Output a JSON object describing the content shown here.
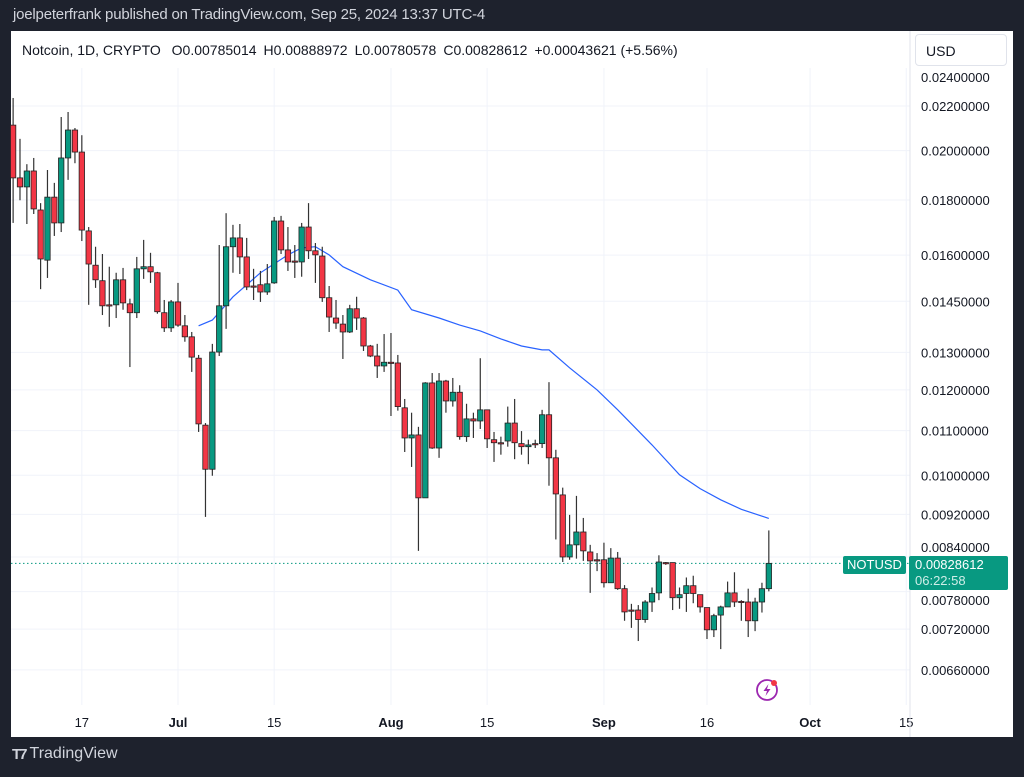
{
  "publisher_line": "joelpeterfrank published on TradingView.com, Sep 25, 2024 13:37 UTC-4",
  "legend": {
    "symbol": "Notcoin, 1D, CRYPTO",
    "open": "O0.00785014",
    "high": "H0.00888972",
    "low": "L0.00780578",
    "close": "C0.00828612",
    "change": "+0.00043621 (+5.56%)"
  },
  "currency_button": "USD",
  "last_price": {
    "symbol": "NOTUSD",
    "price": "0.00828612",
    "countdown": "06:22:58"
  },
  "brand": "TradingView",
  "colors": {
    "up": "#089981",
    "down": "#f23645",
    "ma": "#2962ff",
    "last_line": "#089981",
    "frame": "#1e222d"
  },
  "icons": {
    "logo": "tradingview-logo",
    "bolt": "lightning-bolt-icon"
  },
  "chart_data": {
    "type": "candlestick",
    "interval": "1D",
    "y_scale": "log",
    "ylim": [
      0.0062,
      0.0245
    ],
    "grid": true,
    "x_ticks": [
      {
        "label": "17",
        "date": "2024-06-17",
        "bold": false
      },
      {
        "label": "Jul",
        "date": "2024-07-01",
        "bold": true
      },
      {
        "label": "15",
        "date": "2024-07-15",
        "bold": false
      },
      {
        "label": "Aug",
        "date": "2024-08-01",
        "bold": true
      },
      {
        "label": "15",
        "date": "2024-08-15",
        "bold": false
      },
      {
        "label": "Sep",
        "date": "2024-09-01",
        "bold": true
      },
      {
        "label": "16",
        "date": "2024-09-16",
        "bold": false
      },
      {
        "label": "Oct",
        "date": "2024-10-01",
        "bold": true
      },
      {
        "label": "15",
        "date": "2024-10-15",
        "bold": false
      }
    ],
    "y_ticks": [
      {
        "label": "0.02400000",
        "value": 0.024
      },
      {
        "label": "0.02200000",
        "value": 0.022
      },
      {
        "label": "0.02000000",
        "value": 0.02
      },
      {
        "label": "0.01800000",
        "value": 0.018
      },
      {
        "label": "0.01600000",
        "value": 0.016
      },
      {
        "label": "0.01450000",
        "value": 0.0145
      },
      {
        "label": "0.01300000",
        "value": 0.013
      },
      {
        "label": "0.01200000",
        "value": 0.012
      },
      {
        "label": "0.01100000",
        "value": 0.011
      },
      {
        "label": "0.01000000",
        "value": 0.01
      },
      {
        "label": "0.00920000",
        "value": 0.0092
      },
      {
        "label": "0.00840000",
        "value": 0.0084
      },
      {
        "label": "0.00780000",
        "value": 0.0078
      },
      {
        "label": "0.00720000",
        "value": 0.0072
      },
      {
        "label": "0.00660000",
        "value": 0.0066
      }
    ],
    "candles_columns": [
      "date",
      "open",
      "high",
      "low",
      "close"
    ],
    "candles": [
      [
        "2024-06-07",
        0.02112,
        0.02238,
        0.01714,
        0.01887
      ],
      [
        "2024-06-08",
        0.01887,
        0.02051,
        0.01799,
        0.01851
      ],
      [
        "2024-06-09",
        0.01851,
        0.01943,
        0.0171,
        0.01915
      ],
      [
        "2024-06-10",
        0.01915,
        0.01969,
        0.01747,
        0.01766
      ],
      [
        "2024-06-11",
        0.01762,
        0.01788,
        0.01488,
        0.01587
      ],
      [
        "2024-06-12",
        0.01583,
        0.01919,
        0.01524,
        0.01811
      ],
      [
        "2024-06-13",
        0.01811,
        0.01867,
        0.01667,
        0.01714
      ],
      [
        "2024-06-14",
        0.01714,
        0.02149,
        0.01681,
        0.01969
      ],
      [
        "2024-06-15",
        0.01969,
        0.02172,
        0.01879,
        0.0209
      ],
      [
        "2024-06-16",
        0.0209,
        0.02099,
        0.01947,
        0.01994
      ],
      [
        "2024-06-17",
        0.01994,
        0.02067,
        0.01649,
        0.01688
      ],
      [
        "2024-06-18",
        0.01685,
        0.01699,
        0.01439,
        0.0157
      ],
      [
        "2024-06-19",
        0.01566,
        0.01629,
        0.01492,
        0.01518
      ],
      [
        "2024-06-20",
        0.01515,
        0.01604,
        0.01408,
        0.01436
      ],
      [
        "2024-06-21",
        0.01439,
        0.01561,
        0.01373,
        0.01436
      ],
      [
        "2024-06-22",
        0.01439,
        0.01541,
        0.01399,
        0.01518
      ],
      [
        "2024-06-23",
        0.01518,
        0.01557,
        0.01424,
        0.01445
      ],
      [
        "2024-06-24",
        0.01442,
        0.01458,
        0.0126,
        0.01415
      ],
      [
        "2024-06-25",
        0.01415,
        0.01594,
        0.01399,
        0.01554
      ],
      [
        "2024-06-26",
        0.01554,
        0.01653,
        0.01521,
        0.01561
      ],
      [
        "2024-06-27",
        0.01561,
        0.01608,
        0.01508,
        0.01544
      ],
      [
        "2024-06-28",
        0.01541,
        0.01544,
        0.01412,
        0.01418
      ],
      [
        "2024-06-29",
        0.01415,
        0.01454,
        0.01358,
        0.0137
      ],
      [
        "2024-06-30",
        0.0137,
        0.01454,
        0.01358,
        0.01448
      ],
      [
        "2024-07-01",
        0.01448,
        0.01508,
        0.01373,
        0.01378
      ],
      [
        "2024-07-02",
        0.01376,
        0.01408,
        0.0133,
        0.01344
      ],
      [
        "2024-07-03",
        0.01344,
        0.01358,
        0.01247,
        0.01287
      ],
      [
        "2024-07-04",
        0.01284,
        0.01293,
        0.01097,
        0.01116
      ],
      [
        "2024-07-05",
        0.01113,
        0.01118,
        0.00915,
        0.01013
      ],
      [
        "2024-07-06",
        0.01013,
        0.01324,
        0.00999,
        0.01301
      ],
      [
        "2024-07-07",
        0.01301,
        0.01635,
        0.0129,
        0.01436
      ],
      [
        "2024-07-08",
        0.01436,
        0.0175,
        0.01367,
        0.01629
      ],
      [
        "2024-07-09",
        0.01629,
        0.01707,
        0.01541,
        0.0166
      ],
      [
        "2024-07-10",
        0.0166,
        0.0171,
        0.01537,
        0.01594
      ],
      [
        "2024-07-11",
        0.01594,
        0.0166,
        0.01485,
        0.01495
      ],
      [
        "2024-07-12",
        0.01498,
        0.01554,
        0.01454,
        0.01496
      ],
      [
        "2024-07-13",
        0.01502,
        0.01547,
        0.01448,
        0.01479
      ],
      [
        "2024-07-14",
        0.01479,
        0.0157,
        0.0147,
        0.01505
      ],
      [
        "2024-07-15",
        0.01508,
        0.01736,
        0.01505,
        0.01721
      ],
      [
        "2024-07-16",
        0.01721,
        0.0174,
        0.01604,
        0.01618
      ],
      [
        "2024-07-17",
        0.01618,
        0.01699,
        0.01547,
        0.01577
      ],
      [
        "2024-07-18",
        0.0158,
        0.01635,
        0.01524,
        0.01577
      ],
      [
        "2024-07-19",
        0.01577,
        0.01714,
        0.01528,
        0.01699
      ],
      [
        "2024-07-20",
        0.01699,
        0.01788,
        0.01587,
        0.01615
      ],
      [
        "2024-07-21",
        0.01615,
        0.01642,
        0.01508,
        0.01601
      ],
      [
        "2024-07-22",
        0.01597,
        0.01629,
        0.01448,
        0.01461
      ],
      [
        "2024-07-23",
        0.01461,
        0.01498,
        0.01358,
        0.01402
      ],
      [
        "2024-07-24",
        0.01399,
        0.01454,
        0.01367,
        0.01384
      ],
      [
        "2024-07-25",
        0.01381,
        0.01408,
        0.01282,
        0.01358
      ],
      [
        "2024-07-26",
        0.01358,
        0.01439,
        0.01355,
        0.01427
      ],
      [
        "2024-07-27",
        0.01427,
        0.01464,
        0.01364,
        0.01399
      ],
      [
        "2024-07-28",
        0.01399,
        0.01402,
        0.01304,
        0.01318
      ],
      [
        "2024-07-29",
        0.01318,
        0.01321,
        0.01287,
        0.0129
      ],
      [
        "2024-07-30",
        0.0129,
        0.01324,
        0.01231,
        0.01263
      ],
      [
        "2024-07-31",
        0.01263,
        0.01352,
        0.01247,
        0.01273
      ],
      [
        "2024-08-01",
        0.01273,
        0.01355,
        0.01135,
        0.01271
      ],
      [
        "2024-08-02",
        0.01271,
        0.01293,
        0.01148,
        0.01158
      ],
      [
        "2024-08-03",
        0.01155,
        0.01177,
        0.01051,
        0.01083
      ],
      [
        "2024-08-04",
        0.01083,
        0.01143,
        0.01018,
        0.0109
      ],
      [
        "2024-08-05",
        0.0109,
        0.01109,
        0.00851,
        0.00953
      ],
      [
        "2024-08-06",
        0.00953,
        0.0122,
        0.00953,
        0.01218
      ],
      [
        "2024-08-07",
        0.01218,
        0.01244,
        0.01058,
        0.0106
      ],
      [
        "2024-08-08",
        0.0106,
        0.01244,
        0.01038,
        0.01223
      ],
      [
        "2024-08-09",
        0.01223,
        0.01226,
        0.01143,
        0.01172
      ],
      [
        "2024-08-10",
        0.01172,
        0.01231,
        0.01158,
        0.01194
      ],
      [
        "2024-08-11",
        0.01194,
        0.01212,
        0.01079,
        0.01086
      ],
      [
        "2024-08-12",
        0.01086,
        0.01165,
        0.01074,
        0.01128
      ],
      [
        "2024-08-13",
        0.01128,
        0.01143,
        0.01083,
        0.01123
      ],
      [
        "2024-08-14",
        0.01123,
        0.01284,
        0.01104,
        0.0115
      ],
      [
        "2024-08-15",
        0.0115,
        0.0115,
        0.0106,
        0.01081
      ],
      [
        "2024-08-16",
        0.01079,
        0.01097,
        0.01029,
        0.01072
      ],
      [
        "2024-08-17",
        0.01072,
        0.01086,
        0.01045,
        0.0107
      ],
      [
        "2024-08-18",
        0.01076,
        0.01158,
        0.01063,
        0.01118
      ],
      [
        "2024-08-19",
        0.01118,
        0.01177,
        0.01035,
        0.01072
      ],
      [
        "2024-08-20",
        0.0107,
        0.01099,
        0.01045,
        0.01063
      ],
      [
        "2024-08-21",
        0.01063,
        0.01079,
        0.01024,
        0.01067
      ],
      [
        "2024-08-22",
        0.0107,
        0.01079,
        0.0106,
        0.01069
      ],
      [
        "2024-08-23",
        0.0107,
        0.0115,
        0.0106,
        0.01138
      ],
      [
        "2024-08-24",
        0.01138,
        0.0122,
        0.00978,
        0.01038
      ],
      [
        "2024-08-25",
        0.01038,
        0.01056,
        0.00872,
        0.00961
      ],
      [
        "2024-08-26",
        0.00959,
        0.00974,
        0.00831,
        0.0084
      ],
      [
        "2024-08-27",
        0.0084,
        0.00919,
        0.00835,
        0.00862
      ],
      [
        "2024-08-28",
        0.00862,
        0.00957,
        0.00837,
        0.00886
      ],
      [
        "2024-08-29",
        0.00886,
        0.00913,
        0.00833,
        0.00851
      ],
      [
        "2024-08-30",
        0.00849,
        0.00862,
        0.00778,
        0.00833
      ],
      [
        "2024-08-31",
        0.00835,
        0.00847,
        0.00815,
        0.00834
      ],
      [
        "2024-09-01",
        0.00835,
        0.00866,
        0.00787,
        0.00795
      ],
      [
        "2024-09-02",
        0.00795,
        0.00856,
        0.00795,
        0.00838
      ],
      [
        "2024-09-03",
        0.00838,
        0.00849,
        0.00783,
        0.00785
      ],
      [
        "2024-09-04",
        0.00785,
        0.00791,
        0.00733,
        0.00747
      ],
      [
        "2024-09-05",
        0.0075,
        0.0076,
        0.00722,
        0.00749
      ],
      [
        "2024-09-06",
        0.0075,
        0.00758,
        0.00702,
        0.00735
      ],
      [
        "2024-09-07",
        0.00735,
        0.00766,
        0.0073,
        0.00763
      ],
      [
        "2024-09-08",
        0.00763,
        0.00787,
        0.00747,
        0.00777
      ],
      [
        "2024-09-09",
        0.00778,
        0.00843,
        0.00766,
        0.00831
      ],
      [
        "2024-09-10",
        0.0083,
        0.00831,
        0.00826,
        0.00829
      ],
      [
        "2024-09-11",
        0.0083,
        0.0083,
        0.0075,
        0.0077
      ],
      [
        "2024-09-12",
        0.0077,
        0.00787,
        0.00752,
        0.00775
      ],
      [
        "2024-09-13",
        0.00777,
        0.00804,
        0.00747,
        0.0079
      ],
      [
        "2024-09-14",
        0.0079,
        0.00807,
        0.00761,
        0.00777
      ],
      [
        "2024-09-15",
        0.00775,
        0.00775,
        0.00746,
        0.00755
      ],
      [
        "2024-09-16",
        0.00754,
        0.00754,
        0.00705,
        0.00719
      ],
      [
        "2024-09-17",
        0.00719,
        0.00744,
        0.00708,
        0.00741
      ],
      [
        "2024-09-18",
        0.00742,
        0.00757,
        0.0069,
        0.00755
      ],
      [
        "2024-09-19",
        0.00755,
        0.00797,
        0.00755,
        0.00778
      ],
      [
        "2024-09-20",
        0.00778,
        0.00813,
        0.00755,
        0.00763
      ],
      [
        "2024-09-21",
        0.00764,
        0.00766,
        0.00733,
        0.00763
      ],
      [
        "2024-09-22",
        0.00763,
        0.00785,
        0.00708,
        0.00733
      ],
      [
        "2024-09-23",
        0.00733,
        0.0077,
        0.00717,
        0.00763
      ],
      [
        "2024-09-24",
        0.00763,
        0.00795,
        0.00746,
        0.00785
      ],
      [
        "2024-09-25",
        0.00785014,
        0.00888972,
        0.00780578,
        0.00828612
      ]
    ],
    "moving_average": [
      [
        "2024-07-04",
        0.01376
      ],
      [
        "2024-07-06",
        0.01393
      ],
      [
        "2024-07-09",
        0.01464
      ],
      [
        "2024-07-13",
        0.01541
      ],
      [
        "2024-07-17",
        0.01601
      ],
      [
        "2024-07-19",
        0.01625
      ],
      [
        "2024-07-21",
        0.01629
      ],
      [
        "2024-07-23",
        0.01601
      ],
      [
        "2024-07-25",
        0.01561
      ],
      [
        "2024-07-29",
        0.01518
      ],
      [
        "2024-08-02",
        0.01485
      ],
      [
        "2024-08-04",
        0.01424
      ],
      [
        "2024-08-08",
        0.01399
      ],
      [
        "2024-08-11",
        0.01378
      ],
      [
        "2024-08-14",
        0.01361
      ],
      [
        "2024-08-17",
        0.01338
      ],
      [
        "2024-08-20",
        0.01318
      ],
      [
        "2024-08-23",
        0.01307
      ],
      [
        "2024-08-24",
        0.01307
      ],
      [
        "2024-08-27",
        0.01258
      ],
      [
        "2024-08-31",
        0.012
      ],
      [
        "2024-09-03",
        0.0115
      ],
      [
        "2024-09-08",
        0.01067
      ],
      [
        "2024-09-12",
        0.01001
      ],
      [
        "2024-09-15",
        0.00972
      ],
      [
        "2024-09-18",
        0.00949
      ],
      [
        "2024-09-21",
        0.0093
      ],
      [
        "2024-09-25",
        0.00912
      ]
    ],
    "last_price": 0.00828612
  }
}
